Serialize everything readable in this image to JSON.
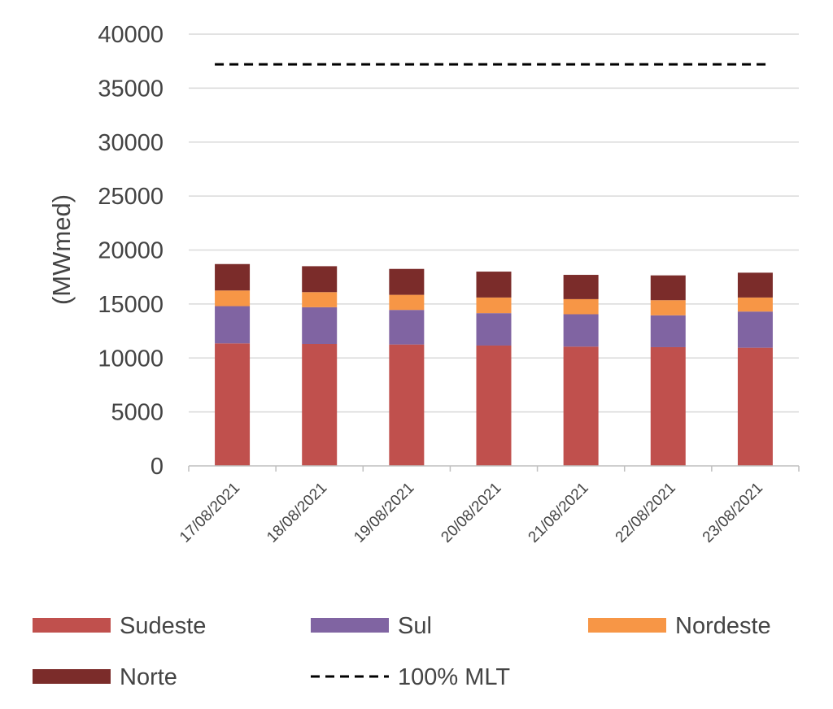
{
  "chart_data": {
    "type": "bar",
    "stacked": true,
    "categories": [
      "17/08/2021",
      "18/08/2021",
      "19/08/2021",
      "20/08/2021",
      "21/08/2021",
      "22/08/2021",
      "23/08/2021"
    ],
    "series": [
      {
        "name": "Sudeste",
        "color": "#c0504d",
        "values": [
          11350,
          11300,
          11250,
          11150,
          11050,
          11000,
          10950
        ]
      },
      {
        "name": "Sul",
        "color": "#8064a2",
        "values": [
          3450,
          3400,
          3200,
          3000,
          3000,
          2950,
          3350
        ]
      },
      {
        "name": "Nordeste",
        "color": "#f79646",
        "values": [
          1450,
          1400,
          1400,
          1450,
          1400,
          1400,
          1300
        ]
      },
      {
        "name": "Norte",
        "color": "#7b2c2a",
        "values": [
          2450,
          2400,
          2400,
          2400,
          2250,
          2300,
          2300
        ]
      }
    ],
    "reference_line": {
      "name": "100% MLT",
      "value": 37200,
      "style": "dashed",
      "color": "#000000"
    },
    "title": "",
    "xlabel": "",
    "ylabel": "(MWmed)",
    "ylim": [
      0,
      40000
    ],
    "yticks": [
      0,
      5000,
      10000,
      15000,
      20000,
      25000,
      30000,
      35000,
      40000
    ],
    "grid": true,
    "legend_position": "bottom"
  }
}
